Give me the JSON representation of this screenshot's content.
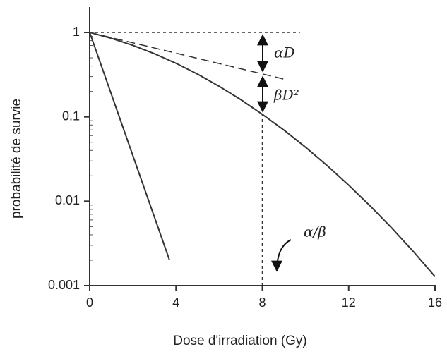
{
  "chart_data": {
    "type": "line",
    "xlabel": "Dose d'irradiation (Gy)",
    "ylabel": "probabilité de survie",
    "xlim": [
      0,
      16
    ],
    "xticks": [
      0,
      4,
      8,
      12,
      16
    ],
    "ylim": [
      0.001,
      2
    ],
    "yticks": [
      0.001,
      0.01,
      0.1,
      1
    ],
    "yscale": "log",
    "annotations": [
      "αD",
      "βD²",
      "α/β"
    ],
    "series": [
      {
        "color": "#333333",
        "dash": false,
        "x": [
          0,
          1,
          2,
          3,
          4,
          5,
          6,
          7,
          8,
          9,
          10,
          11,
          12,
          13,
          14,
          15,
          16
        ],
        "values": [
          1,
          0.853,
          0.703,
          0.56,
          0.431,
          0.321,
          0.23,
          0.16,
          0.107,
          0.0697,
          0.0437,
          0.0265,
          0.0155,
          0.00878,
          0.0048,
          0.00253,
          0.00128
        ]
      },
      {
        "color": "#333333",
        "dash": false,
        "x": [
          0,
          3.7
        ],
        "values": [
          1,
          0.002
        ]
      },
      {
        "color": "#333333",
        "dash": true,
        "x": [
          0,
          9
        ],
        "values": [
          1,
          0.28
        ]
      },
      {
        "color": "#333333",
        "dash": true,
        "x": [
          0,
          9.75
        ],
        "values": [
          1,
          1
        ]
      },
      {
        "color": "#333333",
        "dash": true,
        "x": [
          8,
          8
        ],
        "values": [
          0.001,
          0.107
        ]
      }
    ]
  }
}
